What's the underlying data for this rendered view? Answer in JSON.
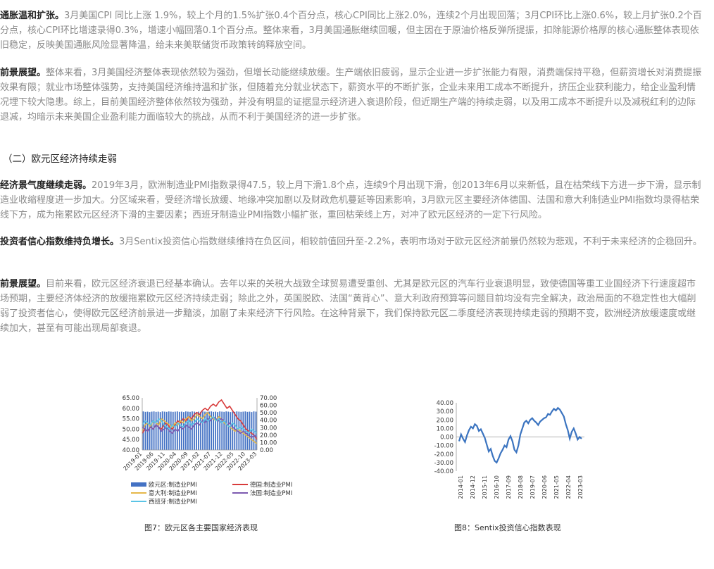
{
  "paragraphs": [
    {
      "lead": "通胀温和扩张。",
      "body": "3月美国CPI 同比上涨 1.9%，较上个月的1.5%扩张0.4个百分点，核心CPI同比上涨2.0%，连续2个月出现回落；3月CPI环比上涨0.6%，较上月扩张0.2个百分点，核心CPI环比增速录得0.3%，增速小幅回落0.1个百分点。整体来看，3月美国通胀继续回暖，但主因在于原油价格反弹所提振，扣除能源价格厚的核心通胀整体表现依旧稳定，反映美国通胀风险显著降温，给未来美联储货币政策转鸽释放空间。"
    },
    {
      "lead": "前景展望。",
      "body": "整体来看，3月美国经济整体表现依然较为强劲，但增长动能继续放缓。生产端依旧疲弱，显示企业进一步扩张能力有限，消费端保持平稳，但薪资增长对消费提振效果有限；就业市场整体强势，支持美国经济维持温和扩张，但随着充分就业状态下，薪资水平的不断扩张，企业未来用工成本不断提升，挤压企业获利能力，给企业盈利情况埋下较大隐患。综上，目前美国经济整体依然较为强劲，并没有明显的证据显示经济进入衰退阶段，但近期生产端的持续走弱，以及用工成本不断提升以及减税红利的边际退减，均暗示未来美国企业盈利能力面临较大的挑战，从而不利于美国经济的进一步扩张。"
    },
    {
      "lead": "经济景气度继续走弱。",
      "body": "2019年3月，欧洲制造业PMI指数录得47.5，较上月下滑1.8个点，连续9个月出现下滑，创2013年6月以来新低，且在枯荣线下方进一步下滑，显示制造业收缩程度进一步加大。分区域来看，受经济增长放缓、地缘冲突加剧以及财政危机蔓延等因素影响，3月欧元区主要经济体德国、法国和意大利制造业PMI指数均录得枯荣线下方，成为拖累欧元区经济下滑的主要因素；西班牙制造业PMI指数小幅扩张，重回枯荣线上方，对冲了欧元区经济的一定下行风险。"
    },
    {
      "lead": "投资者信心指数维持负增长。",
      "body": "3月Sentix投资信心指数继续维持在负区间，相较前值回升至-2.2%，表明市场对于欧元区经济前景仍然较为悲观，不利于未来经济的企稳回升。"
    },
    {
      "lead": "前景展望。",
      "body": "目前来看，欧元区经济衰退已经基本确认。去年以来的关税大战致全球贸易遭受重创、尤其是欧元区的汽车行业衰退明显，致使德国等重工业国经济下行速度超市场预期，主要经济体经济的放缓拖累欧元区经济持续走弱；除此之外，英国脱欧、法国“黄背心”、意大利政府预算等问题目前均没有完全解决，政治局面的不稳定性也大幅削弱了投资者信心，使得欧元区经济前景进一步黯淡，加剧了未来经济下行风险。在这种背景下，我们保持欧元区二季度经济表现持续走弱的预期不变，欧洲经济放缓速度或继续加大，甚至有可能出现局部衰退。"
    }
  ],
  "section_heading": "（二）欧元区经济持续走弱",
  "figure7": {
    "caption": "图7：欧元区各主要国家经济表现",
    "chart_data": {
      "type": "bar",
      "left_axis": {
        "ticks": [
          "65.00",
          "60.00",
          "55.00",
          "50.00",
          "45.00",
          "40.00"
        ],
        "ylim": [
          40,
          65
        ]
      },
      "right_axis": {
        "ticks": [
          "70.00",
          "60.00",
          "50.00",
          "40.00",
          "30.00",
          "20.00",
          "10.00",
          "0.00"
        ],
        "ylim": [
          0,
          70
        ]
      },
      "x_ticks": [
        "2019-01",
        "2019-06",
        "2019-11",
        "2020-04",
        "2020-09",
        "2021-02",
        "2021-07",
        "2021-12",
        "2022-05",
        "2022-10",
        "2023-03"
      ],
      "bar_series": {
        "name": "欧元区:制造业PMI",
        "color": "#4472c4",
        "values": [
          58.5,
          58.3,
          58.4,
          58.2,
          58.4,
          58.5,
          58.3,
          58.4,
          58.2,
          58.5,
          58.4,
          58.3,
          58.5,
          58.4,
          58.3,
          58.4,
          58.5,
          58.3,
          58.4,
          58.2,
          58.5,
          58.4,
          58.3,
          58.5,
          58.4,
          58.2,
          58.4,
          58.3,
          58.5,
          58.4,
          58.3,
          58.4,
          58.5,
          58.3,
          58.4,
          58.2,
          58.5,
          58.4,
          58.3,
          58.5,
          58.4,
          58.2,
          58.4,
          58.3,
          58.5,
          58.4,
          58.3,
          58.4,
          58.5,
          58.3,
          58.4,
          58.2,
          58.5,
          58.4
        ]
      },
      "line_series": [
        {
          "name": "德国:制造业PMI",
          "color": "#d83b3b",
          "values": [
            48,
            50,
            49,
            51,
            50,
            52,
            51,
            50,
            52,
            53,
            51,
            50,
            52,
            54,
            53,
            55,
            54,
            56,
            55,
            57,
            58,
            57,
            59,
            60,
            59,
            61,
            62,
            61,
            63,
            64,
            62,
            60,
            61,
            59,
            57,
            55,
            54,
            52,
            50,
            49,
            48,
            47,
            45
          ]
        },
        {
          "name": "意大利:制造业PMI",
          "color": "#e6b84a",
          "values": [
            49,
            52,
            53,
            51,
            54,
            53,
            52,
            55,
            54,
            53,
            52,
            51,
            53,
            52,
            54,
            53,
            55,
            56,
            54,
            55,
            57,
            56,
            55,
            57,
            58,
            56,
            55,
            54,
            56,
            55,
            53,
            52,
            51,
            50,
            49,
            50,
            49,
            48,
            47,
            46,
            45,
            44,
            43
          ]
        },
        {
          "name": "法国:制造业PMI",
          "color": "#7d5ab0",
          "values": [
            51,
            50,
            49,
            51,
            50,
            52,
            51,
            49,
            50,
            51,
            49,
            48,
            50,
            49,
            51,
            50,
            52,
            51,
            50,
            52,
            53,
            52,
            54,
            53,
            55,
            54,
            56,
            55,
            54,
            55,
            54,
            52,
            53,
            51,
            50,
            49,
            48,
            49,
            48,
            47,
            46,
            47,
            46
          ]
        },
        {
          "name": "西班牙:制造业PMI",
          "color": "#5bc4e6",
          "values": [
            52,
            54,
            53,
            52,
            54,
            53,
            55,
            54,
            52,
            51,
            50,
            52,
            51,
            53,
            52,
            51,
            53,
            54,
            52,
            53,
            55,
            54,
            53,
            55,
            54,
            55,
            56,
            54,
            55,
            53,
            54,
            52,
            51,
            53,
            52,
            50,
            51,
            50,
            49,
            48,
            50,
            49,
            48
          ]
        }
      ],
      "legend": "bottom"
    }
  },
  "figure8": {
    "caption": "图8：Sentix投资信心指数表现",
    "chart_data": {
      "type": "line",
      "y_ticks": [
        "40.00",
        "30.00",
        "20.00",
        "10.00",
        "0.00",
        "-10.00",
        "-20.00",
        "-30.00",
        "-40.00"
      ],
      "ylim": [
        -40,
        40
      ],
      "x_ticks": [
        "2014-01",
        "2014-12",
        "2015-11",
        "2016-10",
        "2017-09",
        "2018-08",
        "2019-07",
        "2020-06",
        "2021-05",
        "2022-04",
        "2023-03"
      ],
      "series": [
        {
          "color": "#3b74c0",
          "values": [
            -5,
            3,
            -2,
            -6,
            2,
            8,
            12,
            10,
            15,
            13,
            7,
            9,
            4,
            -1,
            -9,
            -17,
            -14,
            -22,
            -28,
            -30,
            -25,
            -19,
            -15,
            -10,
            -12,
            -3,
            1,
            -5,
            -15,
            -18,
            -10,
            3,
            10,
            17,
            19,
            16,
            20,
            22,
            19,
            17,
            14,
            18,
            20,
            22,
            23,
            27,
            26,
            30,
            33,
            31,
            34,
            32,
            28,
            24,
            15,
            8,
            -2,
            6,
            10,
            4,
            -3,
            0,
            -2
          ]
        }
      ]
    }
  }
}
